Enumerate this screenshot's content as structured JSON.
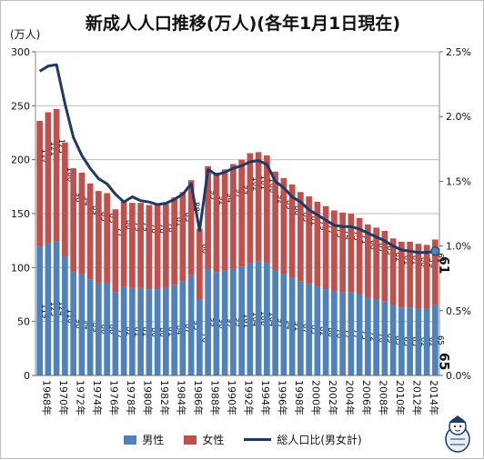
{
  "title": "新成人人口推移(万人)(各年1月1日現在)",
  "unit_label": "(万人)",
  "colors": {
    "male": "#4f81bd",
    "female": "#c0504d",
    "ratio": "#1f3864",
    "grid": "#bfbfbf"
  },
  "legend": {
    "male": "男性",
    "female": "女性",
    "ratio": "総人口比(男女計)"
  },
  "chart_data": {
    "type": "bar",
    "stacked": true,
    "years": [
      1968,
      1969,
      1970,
      1971,
      1972,
      1973,
      1974,
      1975,
      1976,
      1977,
      1978,
      1979,
      1980,
      1981,
      1982,
      1983,
      1984,
      1985,
      1986,
      1987,
      1988,
      1989,
      1990,
      1991,
      1992,
      1993,
      1994,
      1995,
      1996,
      1997,
      1998,
      1999,
      2000,
      2001,
      2002,
      2003,
      2004,
      2005,
      2006,
      2007,
      2008,
      2009,
      2010,
      2011,
      2012,
      2013,
      2014,
      2015
    ],
    "xtick_labels": [
      "1968年",
      "1970年",
      "1972年",
      "1974年",
      "1976年",
      "1978年",
      "1980年",
      "1982年",
      "1984年",
      "1986年",
      "1988年",
      "1990年",
      "1992年",
      "1994年",
      "1996年",
      "1998年",
      "2000年",
      "2002年",
      "2004年",
      "2006年",
      "2008年",
      "2010年",
      "2012年",
      "2014年"
    ],
    "series": [
      {
        "name": "男性",
        "values": [
          119,
          123,
          124,
          110,
          96,
          94,
          89,
          86,
          86,
          77,
          82,
          81,
          81,
          80,
          80,
          81,
          84,
          87,
          93,
          70,
          99,
          96,
          97,
          99,
          101,
          104,
          106,
          104,
          97,
          94,
          91,
          87,
          85,
          82,
          80,
          78,
          77,
          77,
          75,
          72,
          70,
          69,
          65,
          63,
          63,
          62,
          62,
          65
        ]
      },
      {
        "name": "女性",
        "values": [
          117,
          121,
          123,
          106,
          96,
          94,
          89,
          85,
          83,
          77,
          80,
          79,
          79,
          78,
          78,
          78,
          81,
          83,
          88,
          66,
          95,
          92,
          94,
          97,
          99,
          102,
          101,
          100,
          92,
          89,
          86,
          83,
          81,
          79,
          77,
          75,
          74,
          73,
          71,
          68,
          67,
          65,
          62,
          61,
          61,
          60,
          59,
          61
        ]
      },
      {
        "name": "総人口比(男女計)",
        "axis": "right",
        "values": [
          2.35,
          2.39,
          2.4,
          2.1,
          1.84,
          1.7,
          1.6,
          1.52,
          1.48,
          1.4,
          1.34,
          1.38,
          1.35,
          1.34,
          1.32,
          1.33,
          1.36,
          1.4,
          1.48,
          1.12,
          1.59,
          1.55,
          1.57,
          1.6,
          1.62,
          1.65,
          1.66,
          1.63,
          1.5,
          1.45,
          1.38,
          1.34,
          1.28,
          1.24,
          1.2,
          1.16,
          1.15,
          1.15,
          1.13,
          1.1,
          1.07,
          1.04,
          1.0,
          0.97,
          0.96,
          0.95,
          0.95,
          0.96
        ]
      }
    ],
    "yticks_left": [
      "0",
      "50",
      "100",
      "150",
      "200",
      "250",
      "300"
    ],
    "yticks_right": [
      "0.0%",
      "0.5%",
      "1.0%",
      "1.5%",
      "2.0%",
      "2.5%"
    ],
    "ylim_left": [
      0,
      300
    ],
    "ylim_right": [
      0,
      2.5
    ],
    "grid": true,
    "legend_position": "bottom"
  }
}
